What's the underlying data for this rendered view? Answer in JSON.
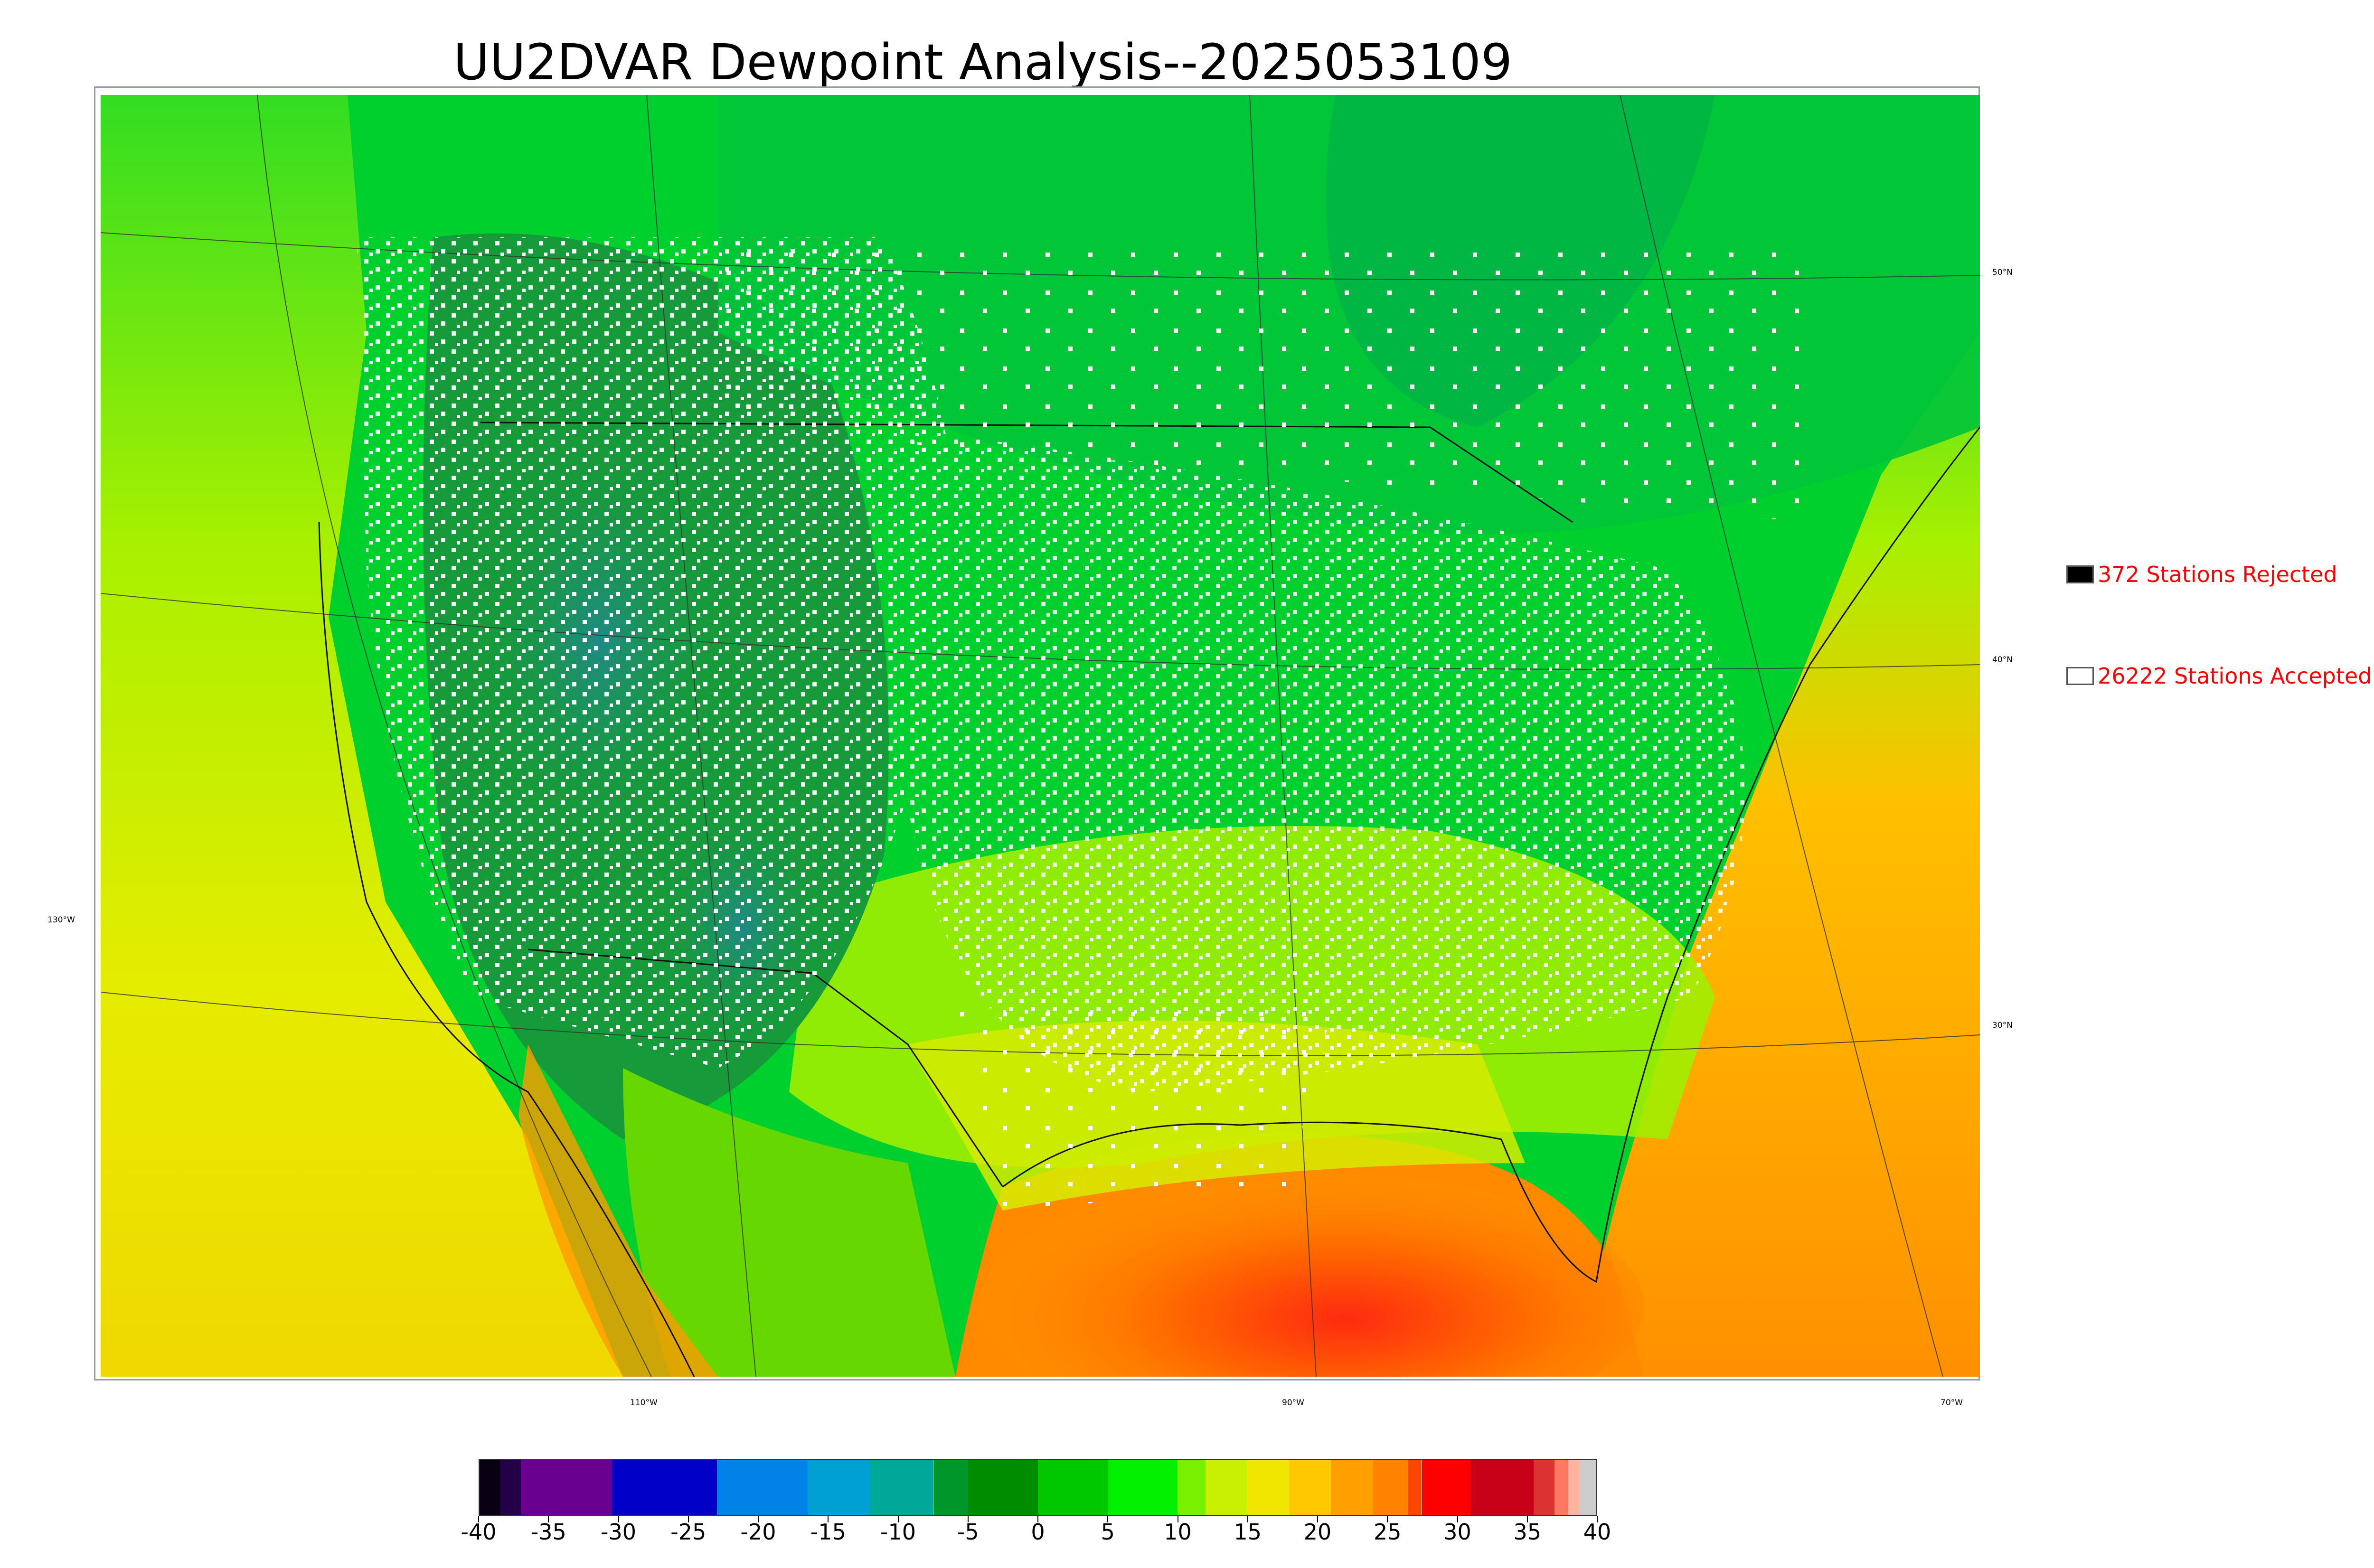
{
  "title": "UU2DVAR Dewpoint Analysis--2025053109",
  "map": {
    "projection": "Lambert conformal",
    "region": "CONUS, southern Canada, northern Mexico, Gulf of Mexico, western Atlantic",
    "field": "2 m dewpoint",
    "lat_labels": [
      "50°N",
      "40°N",
      "30°N"
    ],
    "lon_labels": [
      "130°W",
      "110°W",
      "90°W",
      "70°W"
    ],
    "colors": {
      "ocean_pacific": "#d6ee00",
      "canada": "#00d23a",
      "rockies": "#1a9a3c",
      "great_basin": "#1f8f7a",
      "plains": "#aaf000",
      "gulf": "#ff8c00",
      "gulf_core": "#ff3a10",
      "atlantic": "#ffa800",
      "accepted_station": "#ffffff",
      "rejected_station": "#000000"
    }
  },
  "legend": {
    "rejected_label": "372 Stations Rejected",
    "accepted_label": "26222 Stations Accepted",
    "rejected_color": "#000000",
    "accepted_color": "#ffffff",
    "text_color": "#ff0000"
  },
  "colorbar": {
    "min": -40,
    "max": 40,
    "tick_labels": [
      "-40",
      "-35",
      "-30",
      "-25",
      "-20",
      "-15",
      "-10",
      "-5",
      "0",
      "5",
      "10",
      "15",
      "20",
      "25",
      "30",
      "35",
      "40"
    ],
    "segments": [
      {
        "from": -40,
        "to": -38.5,
        "color": "#0a0014"
      },
      {
        "from": -38.5,
        "to": -37,
        "color": "#230048"
      },
      {
        "from": -37,
        "to": -30.5,
        "color": "#6a0090"
      },
      {
        "from": -30.5,
        "to": -23,
        "color": "#0000c8"
      },
      {
        "from": -23,
        "to": -16.5,
        "color": "#0082e6"
      },
      {
        "from": -16.5,
        "to": -12,
        "color": "#00a0d2"
      },
      {
        "from": -12,
        "to": -7.5,
        "color": "#00a89a"
      },
      {
        "from": -7.5,
        "to": -5,
        "color": "#00962a"
      },
      {
        "from": -5,
        "to": 0,
        "color": "#008c00"
      },
      {
        "from": 0,
        "to": 5,
        "color": "#00c800"
      },
      {
        "from": 5,
        "to": 10,
        "color": "#00f000"
      },
      {
        "from": 10,
        "to": 12,
        "color": "#78f000"
      },
      {
        "from": 12,
        "to": 15,
        "color": "#c8f000"
      },
      {
        "from": 15,
        "to": 18,
        "color": "#f0e600"
      },
      {
        "from": 18,
        "to": 21,
        "color": "#ffc800"
      },
      {
        "from": 21,
        "to": 24,
        "color": "#ffa000"
      },
      {
        "from": 24,
        "to": 26.5,
        "color": "#ff8200"
      },
      {
        "from": 26.5,
        "to": 27.5,
        "color": "#ff4600"
      },
      {
        "from": 27.5,
        "to": 31,
        "color": "#ff0000"
      },
      {
        "from": 31,
        "to": 35.5,
        "color": "#c80018"
      },
      {
        "from": 35.5,
        "to": 37,
        "color": "#dc3232"
      },
      {
        "from": 37,
        "to": 38,
        "color": "#ff7864"
      },
      {
        "from": 38,
        "to": 38.8,
        "color": "#ffb4a0"
      },
      {
        "from": 38.8,
        "to": 40,
        "color": "#cccccc"
      }
    ]
  }
}
